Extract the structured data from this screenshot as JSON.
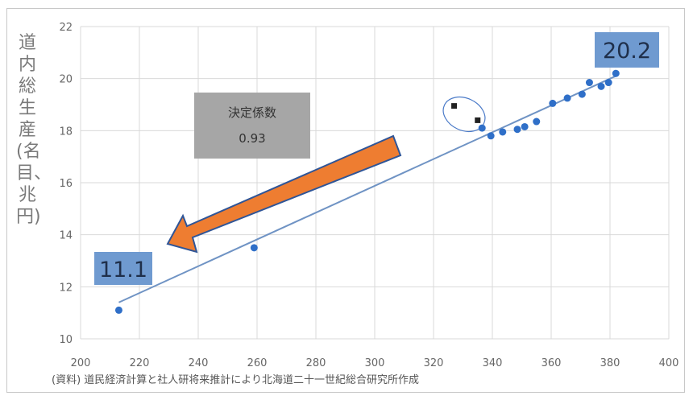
{
  "chart_data": {
    "type": "scatter",
    "ylabel": "道内総生産(名目、兆円)",
    "xlim": [
      200,
      400
    ],
    "ylim": [
      10,
      22
    ],
    "x_ticks": [
      200,
      220,
      240,
      260,
      280,
      300,
      320,
      340,
      360,
      380,
      400
    ],
    "y_ticks": [
      10,
      12,
      14,
      16,
      18,
      20,
      22
    ],
    "grid": true,
    "series": [
      {
        "color": "#2f6fc8",
        "points": [
          [
            213,
            11.1
          ],
          [
            259,
            13.5
          ],
          [
            336.5,
            18.1
          ],
          [
            339.5,
            17.8
          ],
          [
            343.5,
            17.95
          ],
          [
            348.5,
            18.05
          ],
          [
            351,
            18.15
          ],
          [
            355,
            18.35
          ],
          [
            360.5,
            19.05
          ],
          [
            365.5,
            19.25
          ],
          [
            370.5,
            19.4
          ],
          [
            373,
            19.85
          ],
          [
            377,
            19.7
          ],
          [
            379.5,
            19.85
          ],
          [
            382,
            20.2
          ]
        ]
      },
      {
        "color": "#222222",
        "points": [
          [
            327,
            18.95
          ],
          [
            335,
            18.4
          ]
        ]
      }
    ],
    "trendline": {
      "from": [
        213,
        11.4
      ],
      "to": [
        382,
        20.1
      ],
      "color": "#6f93c4"
    },
    "annotations": {
      "r2_title": "決定係数",
      "r2_value": "0.93",
      "start_label": "11.1",
      "end_label": "20.2"
    },
    "source_note": "(資料) 道民経済計算と社人研将来推計により北海道二十一世紀総合研究所作成"
  },
  "colors": {
    "point": "#2f6fc8",
    "highlight_point": "#222222",
    "label_box": "#6f9ad0",
    "stat_box": "#a6a6a6",
    "arrow_fill": "#ee7d31",
    "arrow_stroke": "#2f5597",
    "grid": "#d9d9d9"
  }
}
